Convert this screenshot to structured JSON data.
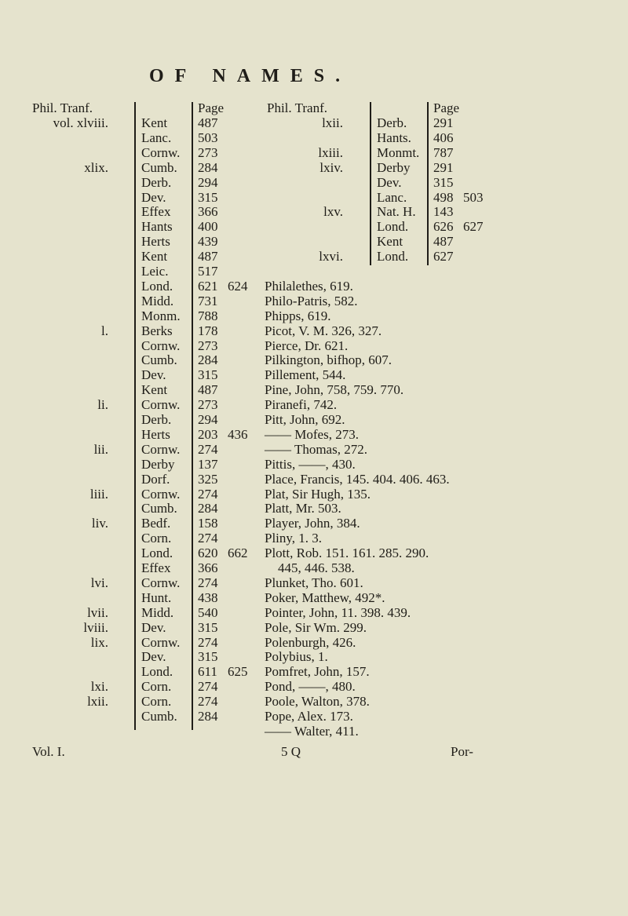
{
  "header": {
    "title": "OF NAMES."
  },
  "left_table": {
    "source_label": "Phil. Tranf.",
    "page_label": "Page",
    "rows": [
      {
        "vol": "vol. xlviii.",
        "county": "Kent",
        "pages": [
          "487"
        ]
      },
      {
        "vol": "",
        "county": "Lanc.",
        "pages": [
          "503"
        ]
      },
      {
        "vol": "",
        "county": "Cornw.",
        "pages": [
          "273"
        ]
      },
      {
        "vol": "xlix.",
        "county": "Cumb.",
        "pages": [
          "284"
        ]
      },
      {
        "vol": "",
        "county": "Derb.",
        "pages": [
          "294"
        ]
      },
      {
        "vol": "",
        "county": "Dev.",
        "pages": [
          "315"
        ]
      },
      {
        "vol": "",
        "county": "Effex",
        "pages": [
          "366"
        ]
      },
      {
        "vol": "",
        "county": "Hants",
        "pages": [
          "400"
        ]
      },
      {
        "vol": "",
        "county": "Herts",
        "pages": [
          "439"
        ]
      },
      {
        "vol": "",
        "county": "Kent",
        "pages": [
          "487"
        ]
      },
      {
        "vol": "",
        "county": "Leic.",
        "pages": [
          "517"
        ]
      },
      {
        "vol": "",
        "county": "Lond.",
        "pages": [
          "621",
          "624"
        ]
      },
      {
        "vol": "",
        "county": "Midd.",
        "pages": [
          "731"
        ]
      },
      {
        "vol": "",
        "county": "Monm.",
        "pages": [
          "788"
        ]
      },
      {
        "vol": "l.",
        "county": "Berks",
        "pages": [
          "178"
        ]
      },
      {
        "vol": "",
        "county": "Cornw.",
        "pages": [
          "273"
        ]
      },
      {
        "vol": "",
        "county": "Cumb.",
        "pages": [
          "284"
        ]
      },
      {
        "vol": "",
        "county": "Dev.",
        "pages": [
          "315"
        ]
      },
      {
        "vol": "",
        "county": "Kent",
        "pages": [
          "487"
        ]
      },
      {
        "vol": "li.",
        "county": "Cornw.",
        "pages": [
          "273"
        ]
      },
      {
        "vol": "",
        "county": "Derb.",
        "pages": [
          "294"
        ]
      },
      {
        "vol": "",
        "county": "Herts",
        "pages": [
          "203",
          "436"
        ]
      },
      {
        "vol": "lii.",
        "county": "Cornw.",
        "pages": [
          "274"
        ]
      },
      {
        "vol": "",
        "county": "Derby",
        "pages": [
          "137"
        ]
      },
      {
        "vol": "",
        "county": "Dorf.",
        "pages": [
          "325"
        ]
      },
      {
        "vol": "liii.",
        "county": "Cornw.",
        "pages": [
          "274"
        ]
      },
      {
        "vol": "",
        "county": "Cumb.",
        "pages": [
          "284"
        ]
      },
      {
        "vol": "liv.",
        "county": "Bedf.",
        "pages": [
          "158"
        ]
      },
      {
        "vol": "",
        "county": "Corn.",
        "pages": [
          "274"
        ]
      },
      {
        "vol": "",
        "county": "Lond.",
        "pages": [
          "620",
          "662"
        ]
      },
      {
        "vol": "",
        "county": "Effex",
        "pages": [
          "366"
        ]
      },
      {
        "vol": "lvi.",
        "county": "Cornw.",
        "pages": [
          "274"
        ]
      },
      {
        "vol": "",
        "county": "Hunt.",
        "pages": [
          "438"
        ]
      },
      {
        "vol": "lvii.",
        "county": "Midd.",
        "pages": [
          "540"
        ]
      },
      {
        "vol": "lviii.",
        "county": "Dev.",
        "pages": [
          "315"
        ]
      },
      {
        "vol": "lix.",
        "county": "Cornw.",
        "pages": [
          "274"
        ]
      },
      {
        "vol": "",
        "county": "Dev.",
        "pages": [
          "315"
        ]
      },
      {
        "vol": "",
        "county": "Lond.",
        "pages": [
          "611",
          "625"
        ]
      },
      {
        "vol": "lxi.",
        "county": "Corn.",
        "pages": [
          "274"
        ]
      },
      {
        "vol": "lxii.",
        "county": "Corn.",
        "pages": [
          "274"
        ]
      },
      {
        "vol": "",
        "county": "Cumb.",
        "pages": [
          "284"
        ]
      }
    ]
  },
  "right_table": {
    "source_label": "Phil. Tranf.",
    "page_label": "Page",
    "rows": [
      {
        "vol": "lxii.",
        "county": "Derb.",
        "pages": [
          "291"
        ]
      },
      {
        "vol": "",
        "county": "Hants.",
        "pages": [
          "406"
        ]
      },
      {
        "vol": "lxiii.",
        "county": "Monmt.",
        "pages": [
          "787"
        ]
      },
      {
        "vol": "lxiv.",
        "county": "Derby",
        "pages": [
          "291"
        ]
      },
      {
        "vol": "",
        "county": "Dev.",
        "pages": [
          "315"
        ]
      },
      {
        "vol": "",
        "county": "Lanc.",
        "pages": [
          "498",
          "503"
        ]
      },
      {
        "vol": "lxv.",
        "county": "Nat. H.",
        "pages": [
          "143"
        ]
      },
      {
        "vol": "",
        "county": "Lond.",
        "pages": [
          "626",
          "627"
        ]
      },
      {
        "vol": "",
        "county": "Kent",
        "pages": [
          "487"
        ]
      },
      {
        "vol": "lxvi.",
        "county": "Lond.",
        "pages": [
          "627"
        ]
      }
    ]
  },
  "index_entries": [
    "Philalethes, 619.",
    "Philo-Patris, 582.",
    "Phipps, 619.",
    "Picot, V. M. 326, 327.",
    "Pierce, Dr. 621.",
    "Pilkington, bifhop, 607.",
    "Pillement, 544.",
    "Pine, John, 758, 759. 770.",
    "Piranefi, 742.",
    "Pitt, John, 692.",
    "—— Mofes, 273.",
    "—— Thomas, 272.",
    "Pittis, ——, 430.",
    "Place, Francis, 145. 404. 406. 463.",
    "Plat, Sir Hugh, 135.",
    "Platt, Mr. 503.",
    "Player, John, 384.",
    "Pliny, 1. 3.",
    "Plott, Rob. 151. 161. 285. 290.",
    "    445, 446. 538.",
    "Plunket, Tho. 601.",
    "Poker, Matthew, 492*.",
    "Pointer, John, 11. 398. 439.",
    "Pole, Sir Wm. 299.",
    "Polenburgh, 426.",
    "Polybius, 1.",
    "Pomfret, John, 157.",
    "Pond, ——, 480.",
    "Poole, Walton, 378.",
    "Pope, Alex. 173.",
    "—— Walter, 411."
  ],
  "footer": {
    "volume": "Vol. I.",
    "signature": "5 Q",
    "catchword": "Por-"
  }
}
